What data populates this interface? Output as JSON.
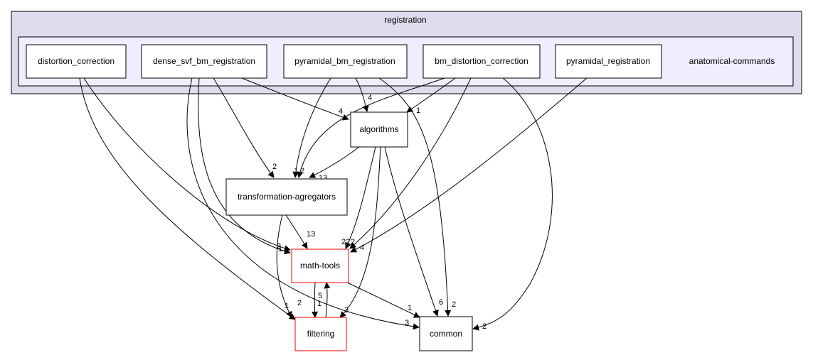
{
  "diagram": {
    "cluster_outer": {
      "title": "registration"
    },
    "cluster_inner": {
      "title": ""
    },
    "nodes": {
      "distortion_correction": "distortion_correction",
      "dense_svf_bm_registration": "dense_svf_bm_registration",
      "pyramidal_bm_registration": "pyramidal_bm_registration",
      "bm_distortion_correction": "bm_distortion_correction",
      "pyramidal_registration": "pyramidal_registration",
      "anatomical_commands": "anatomical-commands",
      "algorithms": "algorithms",
      "transformation_agregators": "transformation-agregators",
      "math_tools": "math-tools",
      "filtering": "filtering",
      "common": "common"
    },
    "edge_labels": {
      "e1": "4",
      "e2": "4",
      "e3": "1",
      "e4": "2",
      "e5": "1",
      "e6": "2",
      "e7": "13",
      "e8": "13",
      "e9": "2",
      "e10": "1",
      "e11": "22",
      "e12": "2",
      "e13": "4",
      "e14": "2",
      "e15": "1",
      "e16": "5",
      "e17": "1",
      "e18": "3",
      "e19": "3",
      "e20": "1",
      "e21": "6",
      "e22": "2",
      "e23": "2"
    },
    "colors": {
      "outer_cluster_fill": "#dddded",
      "inner_cluster_fill": "#eeeeff",
      "highlight_border": "#ff0000",
      "edge": "#000000"
    }
  }
}
